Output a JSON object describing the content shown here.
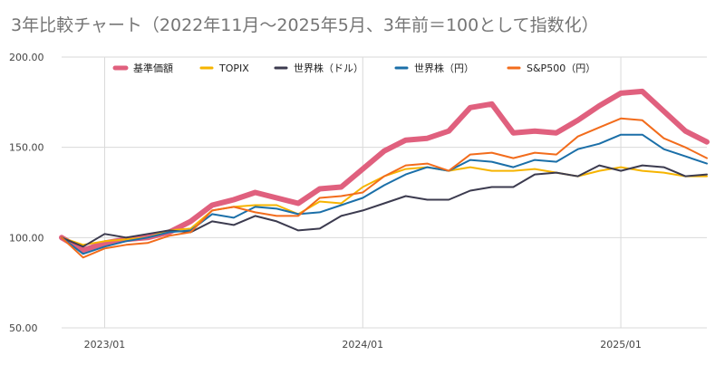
{
  "chart_data": {
    "type": "line",
    "title": "3年比較チャート（2022年11月〜2025年5月、3年前＝100として指数化）",
    "ylim": [
      50,
      200
    ],
    "yticks": [
      50,
      100,
      150,
      200
    ],
    "ytick_labels": [
      "50.00",
      "100.00",
      "150.00",
      "200.00"
    ],
    "xtick_labels": [
      "2023/01",
      "2024/01",
      "2025/01"
    ],
    "xtick_dates": [
      "2023-01",
      "2024-01",
      "2025-01"
    ],
    "x": [
      "2022-11",
      "2022-12",
      "2023-01",
      "2023-02",
      "2023-03",
      "2023-04",
      "2023-05",
      "2023-06",
      "2023-07",
      "2023-08",
      "2023-09",
      "2023-10",
      "2023-11",
      "2023-12",
      "2024-01",
      "2024-02",
      "2024-03",
      "2024-04",
      "2024-05",
      "2024-06",
      "2024-07",
      "2024-08",
      "2024-09",
      "2024-10",
      "2024-11",
      "2024-12",
      "2025-01",
      "2025-02",
      "2025-03",
      "2025-04",
      "2025-05"
    ],
    "grid": true,
    "legend_position": "top",
    "series": [
      {
        "name": "基準価額",
        "color": "#e0607e",
        "width": 6,
        "values": [
          100,
          93,
          97,
          99,
          100,
          103,
          109,
          118,
          121,
          125,
          122,
          119,
          127,
          128,
          138,
          148,
          154,
          155,
          159,
          172,
          174,
          158,
          159,
          158,
          165,
          173,
          180,
          181,
          170,
          159,
          153
        ]
      },
      {
        "name": "TOPIX",
        "color": "#f6b400",
        "width": 2,
        "values": [
          100,
          96,
          98,
          99,
          100,
          104,
          105,
          115,
          117,
          118,
          118,
          113,
          120,
          119,
          128,
          134,
          138,
          139,
          137,
          139,
          137,
          137,
          138,
          136,
          134,
          137,
          139,
          137,
          136,
          134,
          134
        ]
      },
      {
        "name": "世界株（ドル）",
        "color": "#3c3b4f",
        "width": 2,
        "values": [
          100,
          95,
          102,
          100,
          102,
          104,
          103,
          109,
          107,
          112,
          109,
          104,
          105,
          112,
          115,
          119,
          123,
          121,
          121,
          126,
          128,
          128,
          135,
          136,
          134,
          140,
          137,
          140,
          139,
          134,
          135
        ]
      },
      {
        "name": "世界株（円）",
        "color": "#1b6fa8",
        "width": 2,
        "values": [
          100,
          91,
          95,
          98,
          100,
          103,
          104,
          113,
          111,
          117,
          116,
          113,
          114,
          118,
          122,
          129,
          135,
          139,
          137,
          143,
          142,
          139,
          143,
          142,
          149,
          152,
          157,
          157,
          149,
          145,
          141
        ]
      },
      {
        "name": "S&P500（円）",
        "color": "#f26c1c",
        "width": 2,
        "values": [
          100,
          89,
          94,
          96,
          97,
          101,
          103,
          115,
          117,
          114,
          112,
          112,
          122,
          123,
          125,
          134,
          140,
          141,
          137,
          146,
          147,
          144,
          147,
          146,
          156,
          161,
          166,
          165,
          155,
          150,
          144
        ]
      }
    ]
  }
}
